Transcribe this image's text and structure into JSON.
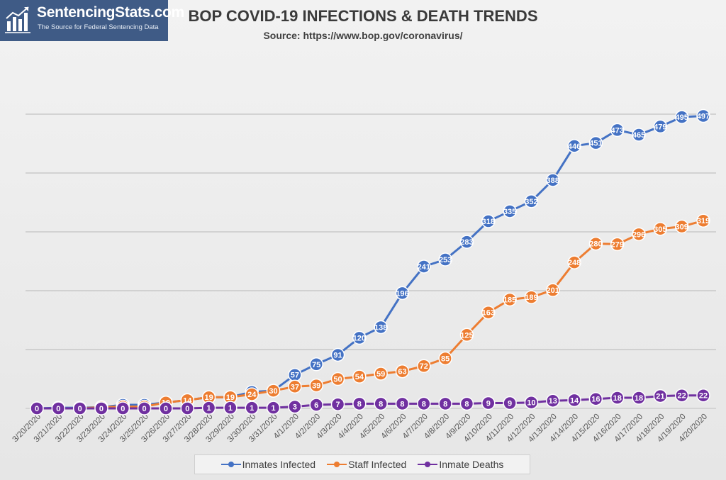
{
  "logo": {
    "name": "SentencingStats.com",
    "tagline": "The Source for Federal Sentencing Data"
  },
  "chart_data": {
    "type": "line",
    "title": "BOP COVID-19 INFECTIONS & DEATH TRENDS",
    "subtitle": "Source: https://www.bop.gov/coronavirus/",
    "xlabel": "",
    "ylabel": "",
    "ylim": [
      0,
      500
    ],
    "grid": true,
    "legend_position": "bottom",
    "categories": [
      "3/20/2020",
      "3/21/2020",
      "3/22/2020",
      "3/23/2020",
      "3/24/2020",
      "3/25/2020",
      "3/26/2020",
      "3/27/2020",
      "3/28/2020",
      "3/29/2020",
      "3/30/2020",
      "3/31/2020",
      "4/1/2020",
      "4/2/2020",
      "4/3/2020",
      "4/4/2020",
      "4/5/2020",
      "4/6/2020",
      "4/7/2020",
      "4/8/2020",
      "4/9/2020",
      "4/10/2020",
      "4/11/2020",
      "4/12/2020",
      "4/13/2020",
      "4/14/2020",
      "4/15/2020",
      "4/16/2020",
      "4/17/2020",
      "4/18/2020",
      "4/19/2020",
      "4/20/2020"
    ],
    "series": [
      {
        "name": "Inmates Infected",
        "color": "#4472c4",
        "values": [
          0,
          1,
          1,
          2,
          6,
          6,
          10,
          14,
          19,
          19,
          28,
          30,
          57,
          75,
          91,
          120,
          138,
          196,
          241,
          253,
          283,
          318,
          335,
          352,
          388,
          446,
          451,
          473,
          465,
          479,
          495,
          497
        ]
      },
      {
        "name": "Staff Infected",
        "color": "#ed7d31",
        "values": [
          0,
          0,
          0,
          2,
          3,
          3,
          10,
          14,
          19,
          19,
          24,
          30,
          37,
          39,
          50,
          54,
          59,
          63,
          72,
          85,
          125,
          163,
          185,
          189,
          201,
          248,
          280,
          279,
          296,
          305,
          309,
          319
        ]
      },
      {
        "name": "Inmate Deaths",
        "color": "#7030a0",
        "values": [
          0,
          0,
          0,
          0,
          0,
          0,
          0,
          0,
          1,
          1,
          1,
          1,
          3,
          6,
          7,
          8,
          8,
          8,
          8,
          8,
          8,
          9,
          9,
          10,
          13,
          14,
          16,
          18,
          18,
          21,
          22,
          22
        ]
      }
    ]
  }
}
